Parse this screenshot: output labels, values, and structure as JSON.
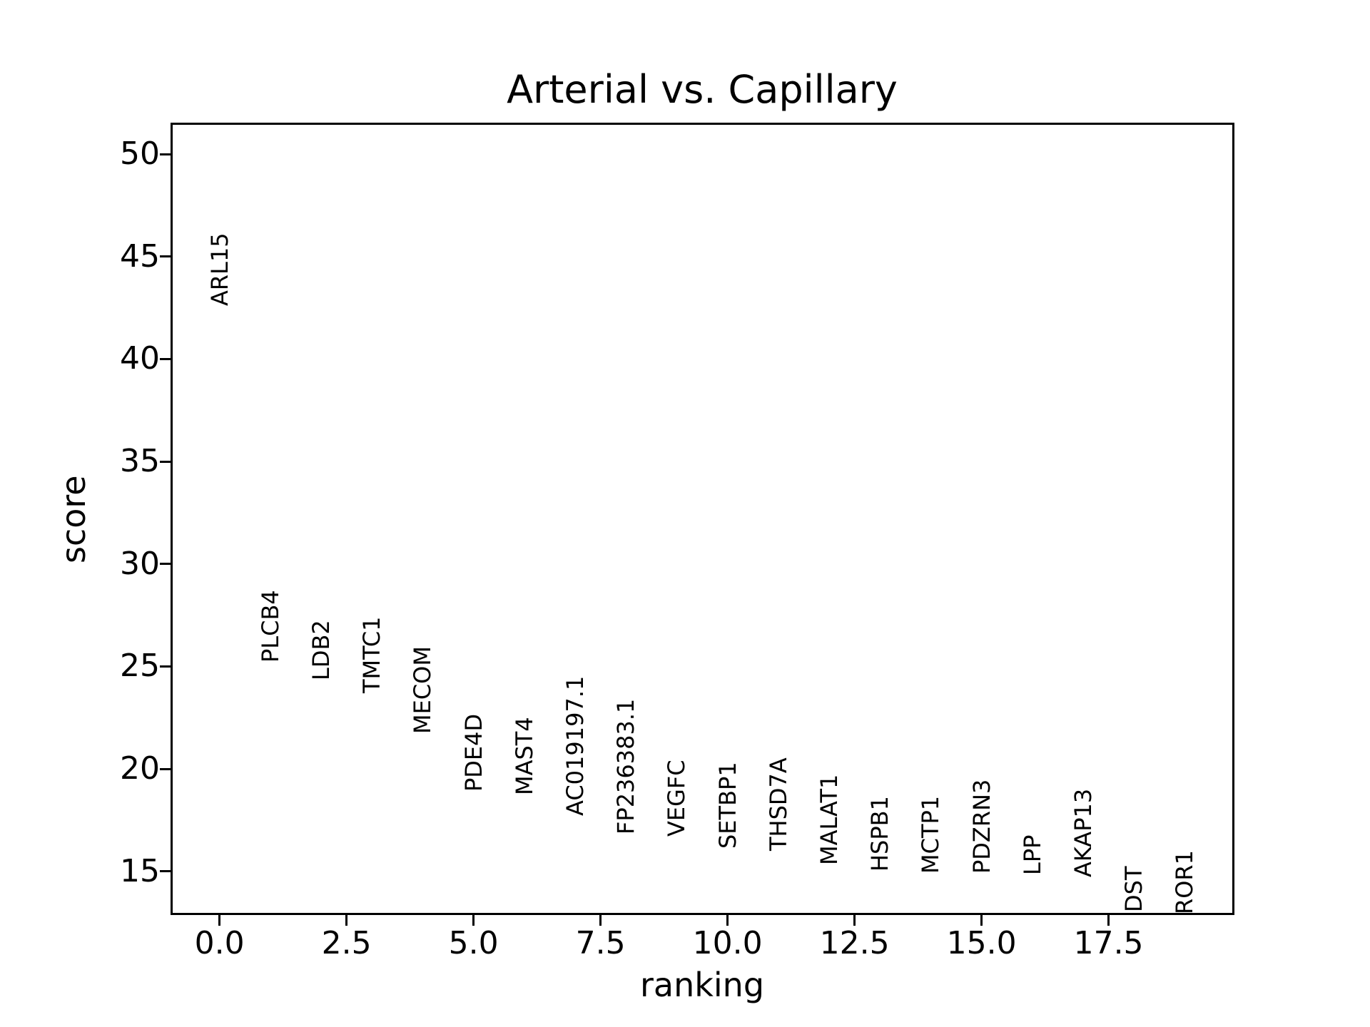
{
  "figure": {
    "background": "#ffffff",
    "text_color": "#000000"
  },
  "chart_data": {
    "type": "scatter",
    "title": "Arterial vs. Capillary",
    "xlabel": "ranking",
    "ylabel": "score",
    "xlim": [
      -0.95,
      19.95
    ],
    "ylim": [
      12.9,
      51.5
    ],
    "grid": false,
    "legend": "none",
    "point_marker": "text-label",
    "label_rotation_deg": 90,
    "x_ticks": [
      0.0,
      2.5,
      5.0,
      7.5,
      10.0,
      12.5,
      15.0,
      17.5
    ],
    "x_tick_labels": [
      "0.0",
      "2.5",
      "5.0",
      "7.5",
      "10.0",
      "12.5",
      "15.0",
      "17.5"
    ],
    "y_ticks": [
      15,
      20,
      25,
      30,
      35,
      40,
      45,
      50
    ],
    "y_tick_labels": [
      "15",
      "20",
      "25",
      "30",
      "35",
      "40",
      "45",
      "50"
    ],
    "points": [
      {
        "label": "ARL15",
        "ranking": 0,
        "score": 42.6
      },
      {
        "label": "PLCB4",
        "ranking": 1,
        "score": 25.2
      },
      {
        "label": "LDB2",
        "ranking": 2,
        "score": 24.3
      },
      {
        "label": "TMTC1",
        "ranking": 3,
        "score": 23.7
      },
      {
        "label": "MECOM",
        "ranking": 4,
        "score": 21.7
      },
      {
        "label": "PDE4D",
        "ranking": 5,
        "score": 18.9
      },
      {
        "label": "MAST4",
        "ranking": 6,
        "score": 18.7
      },
      {
        "label": "AC019197.1",
        "ranking": 7,
        "score": 17.7
      },
      {
        "label": "FP236383.1",
        "ranking": 8,
        "score": 16.8
      },
      {
        "label": "VEGFC",
        "ranking": 9,
        "score": 16.7
      },
      {
        "label": "SETBP1",
        "ranking": 10,
        "score": 16.1
      },
      {
        "label": "THSD7A",
        "ranking": 11,
        "score": 16.0
      },
      {
        "label": "MALAT1",
        "ranking": 12,
        "score": 15.3
      },
      {
        "label": "HSPB1",
        "ranking": 13,
        "score": 15.0
      },
      {
        "label": "MCTP1",
        "ranking": 14,
        "score": 14.9
      },
      {
        "label": "PDZRN3",
        "ranking": 15,
        "score": 14.9
      },
      {
        "label": "LPP",
        "ranking": 16,
        "score": 14.8
      },
      {
        "label": "AKAP13",
        "ranking": 17,
        "score": 14.7
      },
      {
        "label": "DST",
        "ranking": 18,
        "score": 13.0
      },
      {
        "label": "ROR1",
        "ranking": 19,
        "score": 12.9
      }
    ]
  }
}
